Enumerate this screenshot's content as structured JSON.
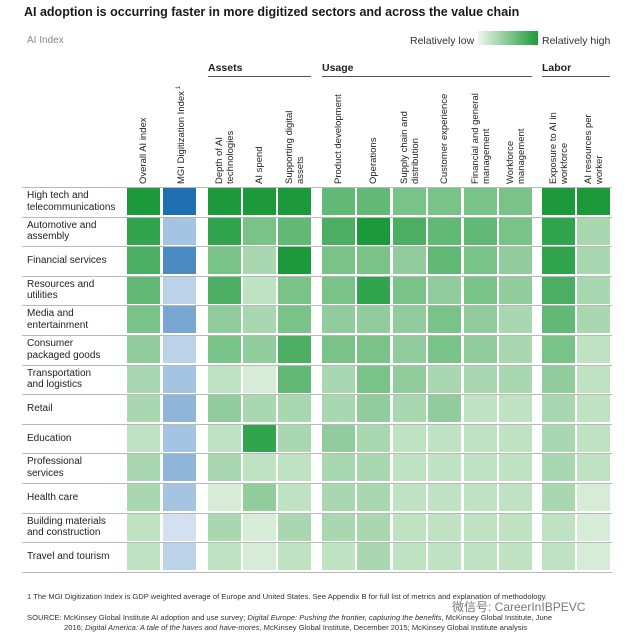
{
  "chart_data": {
    "type": "heatmap",
    "title": "AI adoption is occurring faster in more digitized sectors and across the value chain",
    "subtitle": "AI Index",
    "legend": {
      "low": "Relatively low",
      "high": "Relatively high"
    },
    "groups": [
      {
        "name": "Assets",
        "columns": [
          2,
          3,
          4
        ]
      },
      {
        "name": "Usage",
        "columns": [
          5,
          6,
          7,
          8,
          9,
          10
        ]
      },
      {
        "name": "Labor",
        "columns": [
          11,
          12
        ]
      }
    ],
    "columns": [
      [
        "Overall AI index"
      ],
      [
        "MGI Digitization Index"
      ],
      [
        "Depth of AI",
        "technologies"
      ],
      [
        "AI spend"
      ],
      [
        "Supporting digital",
        "assets"
      ],
      [
        "Product development"
      ],
      [
        "Operations"
      ],
      [
        "Supply chain and",
        "distribution"
      ],
      [
        "Customer experience"
      ],
      [
        "Financial and general",
        "management"
      ],
      [
        "Workforce",
        "management"
      ],
      [
        "Exposure to AI in",
        "workforce"
      ],
      [
        "AI resources per",
        "worker"
      ]
    ],
    "rows": [
      {
        "label": [
          "High tech and",
          "telecommunications"
        ],
        "values": [
          9,
          9,
          9,
          9,
          9,
          6,
          6,
          5,
          5,
          5,
          5,
          9,
          9
        ]
      },
      {
        "label": [
          "Automotive and",
          "assembly"
        ],
        "values": [
          8,
          3,
          8,
          5,
          6,
          7,
          9,
          7,
          6,
          6,
          5,
          8,
          3
        ]
      },
      {
        "label": [
          "Financial services"
        ],
        "values": [
          7,
          7,
          5,
          3,
          9,
          5,
          5,
          4,
          6,
          5,
          4,
          8,
          3
        ]
      },
      {
        "label": [
          "Resources and",
          "utilities"
        ],
        "values": [
          6,
          2,
          7,
          2,
          5,
          5,
          8,
          5,
          4,
          5,
          4,
          7,
          3
        ]
      },
      {
        "label": [
          "Media and",
          "entertainment"
        ],
        "values": [
          5,
          5,
          4,
          3,
          5,
          4,
          4,
          4,
          5,
          4,
          3,
          6,
          3
        ]
      },
      {
        "label": [
          "Consumer",
          "packaged goods"
        ],
        "values": [
          4,
          2,
          5,
          4,
          7,
          5,
          5,
          4,
          5,
          4,
          3,
          5,
          2
        ]
      },
      {
        "label": [
          "Transportation",
          "and logistics"
        ],
        "values": [
          3,
          3,
          2,
          1,
          6,
          3,
          5,
          4,
          3,
          3,
          3,
          4,
          2
        ]
      },
      {
        "label": [
          "Retail"
        ],
        "values": [
          3,
          4,
          4,
          3,
          3,
          3,
          4,
          3,
          4,
          2,
          2,
          3,
          2
        ]
      },
      {
        "label": [
          "Education"
        ],
        "values": [
          2,
          3,
          2,
          8,
          3,
          4,
          3,
          2,
          2,
          2,
          2,
          3,
          2
        ]
      },
      {
        "label": [
          "Professional",
          "services"
        ],
        "values": [
          3,
          4,
          3,
          2,
          2,
          3,
          3,
          2,
          2,
          2,
          2,
          3,
          2
        ]
      },
      {
        "label": [
          "Health care"
        ],
        "values": [
          3,
          3,
          1,
          4,
          2,
          3,
          3,
          2,
          2,
          2,
          2,
          3,
          1
        ]
      },
      {
        "label": [
          "Building materials",
          "and construction"
        ],
        "values": [
          2,
          1,
          3,
          1,
          3,
          3,
          3,
          2,
          2,
          2,
          2,
          2,
          1
        ]
      },
      {
        "label": [
          "Travel and tourism"
        ],
        "values": [
          2,
          2,
          2,
          1,
          2,
          2,
          3,
          2,
          2,
          2,
          2,
          2,
          1
        ]
      }
    ],
    "scale": [
      0,
      9
    ],
    "color_scale": {
      "low": "#eef6ea",
      "high": "#1c9a3b",
      "digitization_low": "#e8eef8",
      "digitization_high": "#1f6fb3"
    }
  },
  "footnote": "1  The MGI Digitization Index is GDP weighted average of Europe and United States. See Appendix B for full list of metrics and explanation of methodology.",
  "source": {
    "label": "SOURCE:",
    "line1_a": "McKinsey Global Institute AI adoption and use survey; ",
    "line1_b": "Digital Europe: Pushing the frontier, capturing the benefits",
    "line1_c": ", McKinsey Global Institute, June",
    "line2_a": "2016; ",
    "line2_b": "Digital America: A tale of the haves and have-mores",
    "line2_c": ", McKinsey Global Institute, December 2015; McKinsey Global Institute analysis"
  },
  "watermark": "微信号: CareerInIBPEVC"
}
